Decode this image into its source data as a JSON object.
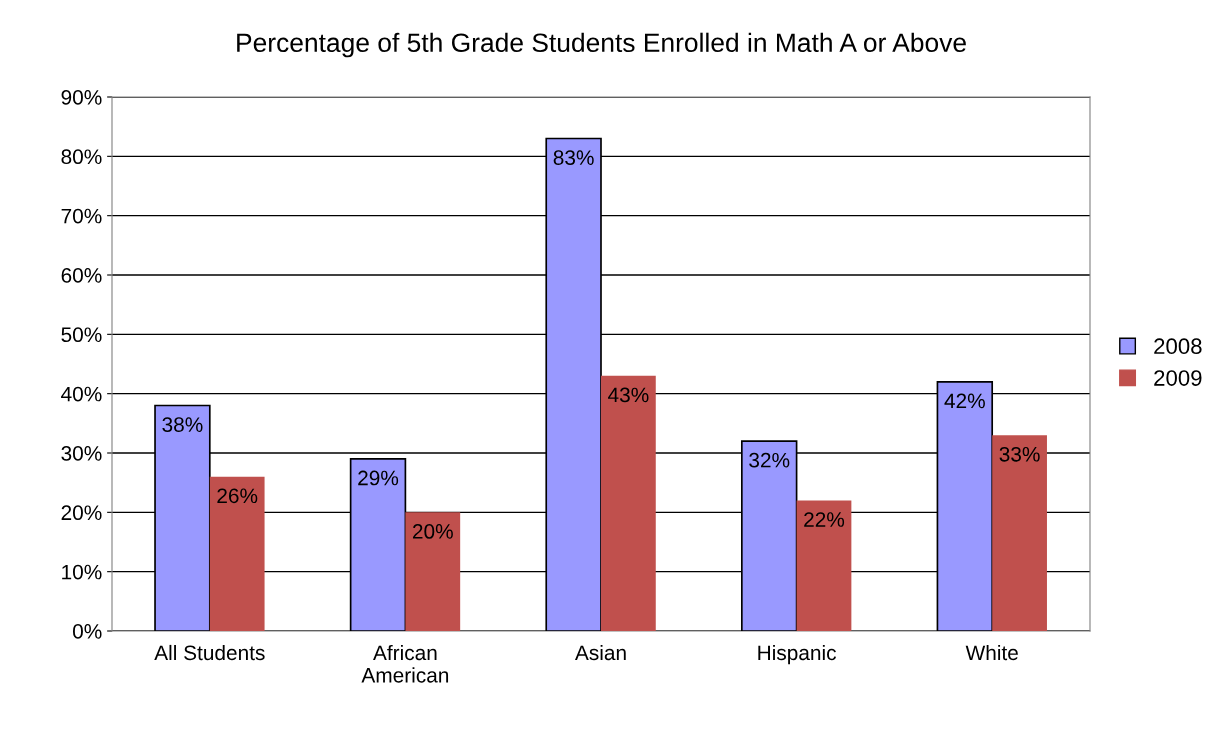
{
  "chart_data": {
    "type": "bar",
    "title": "Percentage of 5th Grade Students Enrolled in Math A or Above",
    "categories": [
      "All Students",
      "African\nAmerican",
      "Asian",
      "Hispanic",
      "White"
    ],
    "series": [
      {
        "name": "2008",
        "color": "#9999ff",
        "values": [
          38,
          29,
          83,
          32,
          42
        ],
        "value_labels": [
          "38%",
          "29%",
          "83%",
          "32%",
          "42%"
        ]
      },
      {
        "name": "2009",
        "color": "#c0504d",
        "values": [
          26,
          20,
          43,
          22,
          33
        ],
        "value_labels": [
          "26%",
          "20%",
          "43%",
          "22%",
          "33%"
        ]
      }
    ],
    "ylim": [
      0,
      90
    ],
    "yticks": [
      {
        "value": 0,
        "label": "0%"
      },
      {
        "value": 10,
        "label": "10%"
      },
      {
        "value": 20,
        "label": "20%"
      },
      {
        "value": 30,
        "label": "30%"
      },
      {
        "value": 40,
        "label": "40%"
      },
      {
        "value": 50,
        "label": "50%"
      },
      {
        "value": 60,
        "label": "60%"
      },
      {
        "value": 70,
        "label": "70%"
      },
      {
        "value": 80,
        "label": "80%"
      },
      {
        "value": 90,
        "label": "90%"
      }
    ],
    "grid": "y",
    "legend": "right"
  }
}
